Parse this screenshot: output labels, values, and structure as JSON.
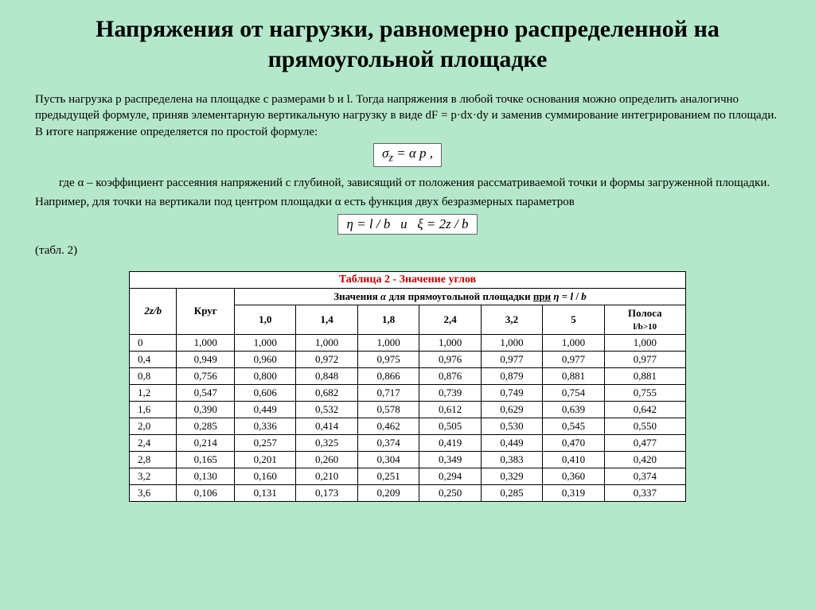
{
  "title": "Напряжения от нагрузки, равномерно распределенной на прямоугольной площадке",
  "para1": "Пусть нагрузка p распределена на площадке с размерами b и l. Тогда напряжения в любой точке основания можно определить аналогично предыдущей формуле, приняв элементарную вертикальную нагрузку в виде dF = p·dx·dy и заменив суммирование интегрированием по площади. В итоге напряжение определяется по простой формуле:",
  "formula1": "σ_z = α p ,",
  "para2_indent": "где α – коэффициент рассеяния напряжений с глубиной, зависящий от положения рассматриваемой точки и формы загруженной площадки.",
  "para3": "Например, для точки на вертикали под центром площадки α есть функция двух безразмерных параметров",
  "formula2": "η = l / b   и   ξ = 2z / b",
  "para4": "(табл. 2)",
  "table": {
    "caption": "Таблица  2 - Значение углов",
    "header_group": "Значения α для прямоугольной площадки при η = l / b",
    "col_2zb": "2z/b",
    "col_circle": "Круг",
    "col_strip_top": "Полоса",
    "col_strip_sub": "l/b>10",
    "eta_cols": [
      "1,0",
      "1,4",
      "1,8",
      "2,4",
      "3,2",
      "5"
    ],
    "rows": [
      {
        "k": "0",
        "c": "1,000",
        "v": [
          "1,000",
          "1,000",
          "1,000",
          "1,000",
          "1,000",
          "1,000"
        ],
        "s": "1,000"
      },
      {
        "k": "0,4",
        "c": "0,949",
        "v": [
          "0,960",
          "0,972",
          "0,975",
          "0,976",
          "0,977",
          "0,977"
        ],
        "s": "0,977"
      },
      {
        "k": "0,8",
        "c": "0,756",
        "v": [
          "0,800",
          "0,848",
          "0,866",
          "0,876",
          "0,879",
          "0,881"
        ],
        "s": "0,881"
      },
      {
        "k": "1,2",
        "c": "0,547",
        "v": [
          "0,606",
          "0,682",
          "0,717",
          "0,739",
          "0,749",
          "0,754"
        ],
        "s": "0,755"
      },
      {
        "k": "1,6",
        "c": "0,390",
        "v": [
          "0,449",
          "0,532",
          "0,578",
          "0,612",
          "0,629",
          "0,639"
        ],
        "s": "0,642"
      },
      {
        "k": "2,0",
        "c": "0,285",
        "v": [
          "0,336",
          "0,414",
          "0,462",
          "0,505",
          "0,530",
          "0,545"
        ],
        "s": "0,550"
      },
      {
        "k": "2,4",
        "c": "0,214",
        "v": [
          "0,257",
          "0,325",
          "0,374",
          "0,419",
          "0,449",
          "0,470"
        ],
        "s": "0,477"
      },
      {
        "k": "2,8",
        "c": "0,165",
        "v": [
          "0,201",
          "0,260",
          "0,304",
          "0,349",
          "0,383",
          "0,410"
        ],
        "s": "0,420"
      },
      {
        "k": "3,2",
        "c": "0,130",
        "v": [
          "0,160",
          "0,210",
          "0,251",
          "0,294",
          "0,329",
          "0,360"
        ],
        "s": "0,374"
      },
      {
        "k": "3,6",
        "c": "0,106",
        "v": [
          "0,131",
          "0,173",
          "0,209",
          "0,250",
          "0,285",
          "0,319"
        ],
        "s": "0,337"
      }
    ]
  },
  "colors": {
    "page_bg": "#b5e8cb",
    "formula_bg": "#ffffff",
    "border": "#000000",
    "caption": "#c00000"
  }
}
